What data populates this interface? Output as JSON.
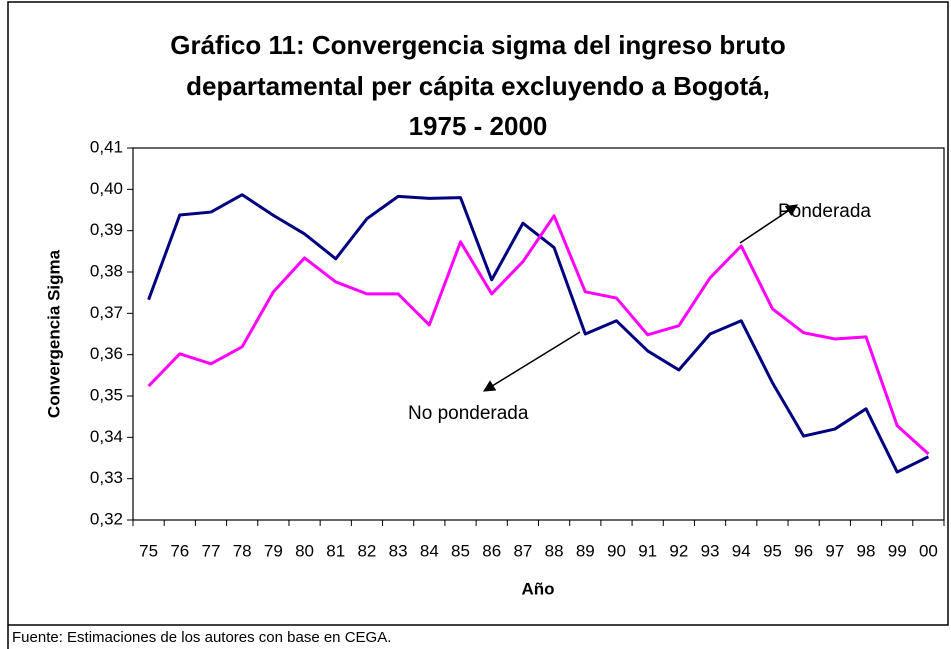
{
  "chart_data": {
    "type": "line",
    "title": [
      "Gráfico 11: Convergencia sigma del ingreso bruto",
      "departamental per cápita excluyendo a Bogotá,",
      "1975 - 2000"
    ],
    "x_label": "Año",
    "y_label": "Convergencia Sigma",
    "source": "Fuente: Estimaciones de los autores con base en CEGA.",
    "annotations": [
      "Ponderada",
      "No ponderada"
    ],
    "categories": [
      "75",
      "76",
      "77",
      "78",
      "79",
      "80",
      "81",
      "82",
      "83",
      "84",
      "85",
      "86",
      "87",
      "88",
      "89",
      "90",
      "91",
      "92",
      "93",
      "94",
      "95",
      "96",
      "97",
      "98",
      "99",
      "00"
    ],
    "series": [
      {
        "name": "No ponderada",
        "color": "#000080",
        "values": [
          0.3733,
          0.3938,
          0.3945,
          0.3987,
          0.3937,
          0.3892,
          0.3832,
          0.3929,
          0.3983,
          0.3978,
          0.398,
          0.3781,
          0.3918,
          0.3859,
          0.365,
          0.3682,
          0.3609,
          0.3563,
          0.365,
          0.3682,
          0.3532,
          0.3403,
          0.342,
          0.3469,
          0.3316,
          0.3353
        ]
      },
      {
        "name": "Ponderada",
        "color": "#ff00ff",
        "values": [
          0.3524,
          0.3602,
          0.3578,
          0.3619,
          0.3752,
          0.3834,
          0.3776,
          0.3747,
          0.3747,
          0.3672,
          0.3873,
          0.3747,
          0.3825,
          0.3936,
          0.3752,
          0.3737,
          0.3648,
          0.367,
          0.3786,
          0.3863,
          0.3711,
          0.3653,
          0.3638,
          0.3643,
          0.3428,
          0.336
        ]
      }
    ],
    "ylim": [
      0.32,
      0.41
    ],
    "yticks": [
      {
        "value": 0.32,
        "label": "0,32"
      },
      {
        "value": 0.33,
        "label": "0,33"
      },
      {
        "value": 0.34,
        "label": "0,34"
      },
      {
        "value": 0.35,
        "label": "0,35"
      },
      {
        "value": 0.36,
        "label": "0,36"
      },
      {
        "value": 0.37,
        "label": "0,37"
      },
      {
        "value": 0.38,
        "label": "0,38"
      },
      {
        "value": 0.39,
        "label": "0,39"
      },
      {
        "value": 0.4,
        "label": "0,40"
      },
      {
        "value": 0.41,
        "label": "0,41"
      }
    ],
    "grid": false
  }
}
